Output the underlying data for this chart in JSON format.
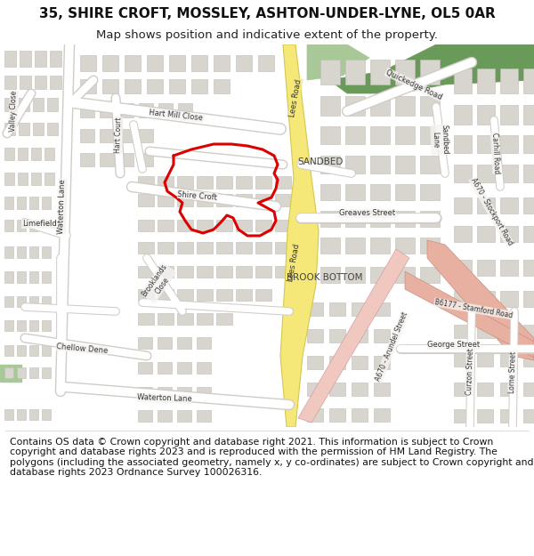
{
  "title_line1": "35, SHIRE CROFT, MOSSLEY, ASHTON-UNDER-LYNE, OL5 0AR",
  "title_line2": "Map shows position and indicative extent of the property.",
  "footer_text": "Contains OS data © Crown copyright and database right 2021. This information is subject to Crown copyright and database rights 2023 and is reproduced with the permission of HM Land Registry. The polygons (including the associated geometry, namely x, y co-ordinates) are subject to Crown copyright and database rights 2023 Ordnance Survey 100026316.",
  "map_bg": "#f5f3f0",
  "building_color": "#d8d5cf",
  "building_outline": "#c0bdb8",
  "road_white": "#ffffff",
  "road_outline_color": "#d0cdc8",
  "green_area": "#a8c898",
  "green_dark": "#6a9a5a",
  "yellow_road_fill": "#f5e878",
  "yellow_road_edge": "#d4c850",
  "pink_road": "#f0c8c0",
  "salmon_road": "#e8b0a0",
  "plot_red": "#dd0000",
  "header_bg": "#ffffff",
  "footer_bg": "#ffffff",
  "title_fontsize": 11,
  "subtitle_fontsize": 9.5,
  "footer_fontsize": 7.8,
  "road_label_fs": 6.0,
  "area_label_fs": 7.5
}
